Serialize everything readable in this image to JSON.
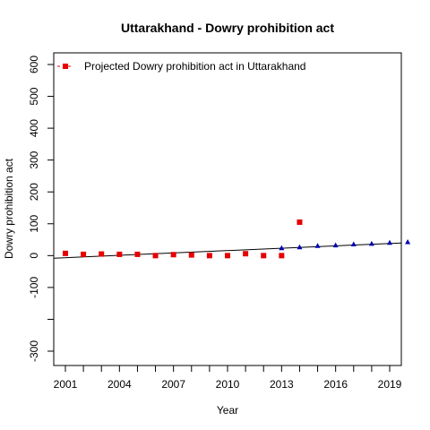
{
  "chart_data": {
    "type": "scatter",
    "title": "Uttarakhand  -  Dowry prohibition act",
    "xlabel": "Year",
    "ylabel": "Dowry prohibition act",
    "xlim": [
      2000,
      2021
    ],
    "ylim": [
      -300,
      600
    ],
    "xticks": [
      2001,
      2004,
      2007,
      2010,
      2013,
      2016,
      2019
    ],
    "yticks": [
      -300,
      -100,
      0,
      100,
      200,
      300,
      400,
      500,
      600
    ],
    "ytick_labels": [
      "-300",
      "-100",
      "0",
      "100",
      "200",
      "300",
      "400",
      "500",
      "600"
    ],
    "grid": false,
    "legend_position": "top-left",
    "legend_entries": [
      "Projected  Dowry prohibition act  in  Uttarakhand"
    ],
    "colors": {
      "observed": "#e60000",
      "projected": "#0000b3",
      "trend": "#000000"
    },
    "series": [
      {
        "name": "Projected  Dowry prohibition act  in  Uttarakhand",
        "marker": "square",
        "color": "#e60000",
        "x": [
          2001,
          2002,
          2003,
          2004,
          2005,
          2006,
          2007,
          2008,
          2009,
          2010,
          2011,
          2012,
          2013,
          2014
        ],
        "y": [
          7,
          4,
          5,
          4,
          4,
          0,
          3,
          2,
          0,
          0,
          6,
          0,
          0,
          105
        ]
      },
      {
        "marker": "triangle",
        "color": "#0000b3",
        "x": [
          2013,
          2014,
          2015,
          2016,
          2017,
          2018,
          2019,
          2020
        ],
        "y": [
          24,
          27,
          31,
          33,
          36,
          38,
          41,
          43
        ]
      }
    ],
    "trend_line": {
      "x": [
        2000,
        2021
      ],
      "y": [
        -9,
        43
      ]
    }
  }
}
